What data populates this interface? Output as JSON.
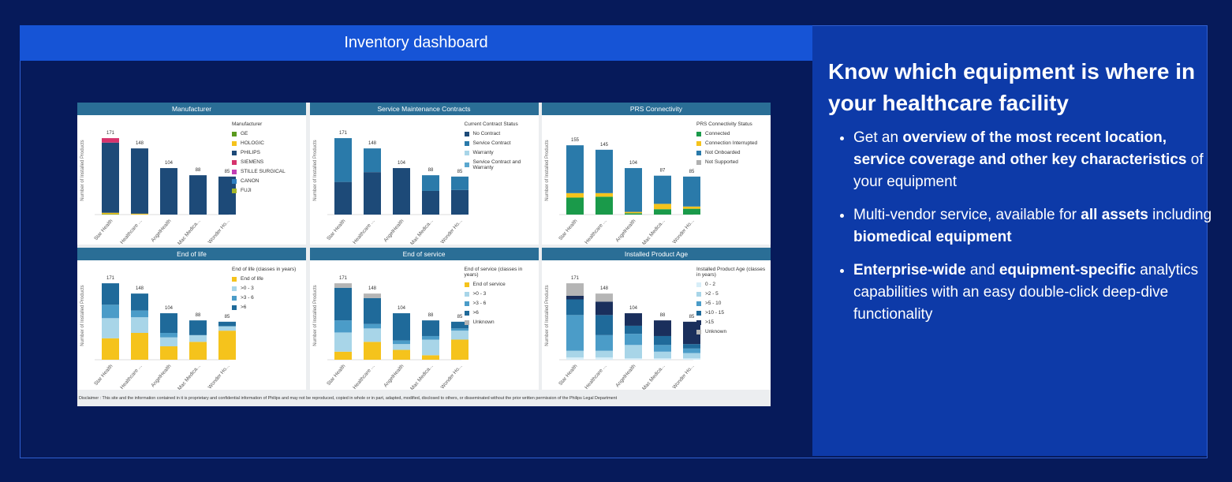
{
  "header": {
    "title": "Inventory dashboard"
  },
  "chart_data": [
    {
      "type": "bar",
      "stacked": true,
      "title": "Manufacturer",
      "y_label": "Number of Installed Products",
      "legend_title": "Manufacturer",
      "categories": [
        "Star Health",
        "Healthcare ...",
        "AngelHealth",
        "Mac Medica...",
        "Wonder Ho..."
      ],
      "ylim": [
        0,
        180
      ],
      "totals": [
        171,
        148,
        104,
        88,
        85
      ],
      "series": [
        {
          "name": "GE",
          "color": "#5a9a1e",
          "values": [
            1,
            0,
            0,
            0,
            0
          ]
        },
        {
          "name": "HOLOGIC",
          "color": "#f5c31c",
          "values": [
            3,
            2,
            0,
            0,
            0
          ]
        },
        {
          "name": "PHILIPS",
          "color": "#1d4a78",
          "values": [
            157,
            146,
            104,
            88,
            85
          ]
        },
        {
          "name": "SIEMENS",
          "color": "#d6336c",
          "values": [
            10,
            0,
            0,
            0,
            0
          ]
        },
        {
          "name": "STILLE SURGICAL",
          "color": "#c23fb5",
          "values": [
            0,
            0,
            0,
            0,
            0
          ]
        },
        {
          "name": "CANON",
          "color": "#2f7fc0",
          "values": [
            0,
            0,
            0,
            0,
            0
          ]
        },
        {
          "name": "FUJI",
          "color": "#a3b52a",
          "values": [
            0,
            0,
            0,
            0,
            0
          ]
        }
      ]
    },
    {
      "type": "bar",
      "stacked": true,
      "title": "Service Maintenance Contracts",
      "y_label": "Number of Installed Products",
      "legend_title": "Current Contract Status",
      "categories": [
        "Star Health",
        "Healthcare ...",
        "AngelHealth",
        "Mac Medica...",
        "Wonder Ho..."
      ],
      "ylim": [
        0,
        180
      ],
      "totals": [
        171,
        148,
        104,
        88,
        85
      ],
      "series": [
        {
          "name": "No Contract",
          "color": "#1d4a78",
          "values": [
            73,
            95,
            104,
            53,
            55
          ]
        },
        {
          "name": "Service Contract",
          "color": "#2a7aaa",
          "values": [
            98,
            53,
            0,
            35,
            30
          ]
        },
        {
          "name": "Warranty",
          "color": "#a8d5e8",
          "values": [
            0,
            0,
            0,
            0,
            0
          ]
        },
        {
          "name": "Service Contract and Warranty",
          "color": "#5aa7cf",
          "values": [
            0,
            0,
            0,
            0,
            0
          ]
        }
      ]
    },
    {
      "type": "bar",
      "stacked": true,
      "title": "PRS Connectivity",
      "y_label": "Number of Installed Products",
      "legend_title": "PRS Connectivity Status",
      "categories": [
        "Star Health",
        "Healthcare ...",
        "AngelHealth",
        "Mac Medica...",
        "Wonder Ho..."
      ],
      "ylim": [
        0,
        180
      ],
      "totals": [
        155,
        145,
        104,
        87,
        85
      ],
      "series": [
        {
          "name": "Connected",
          "color": "#1a9a4a",
          "values": [
            38,
            40,
            3,
            12,
            13
          ]
        },
        {
          "name": "Connection Interrupted",
          "color": "#f5c31c",
          "values": [
            10,
            8,
            3,
            12,
            5
          ]
        },
        {
          "name": "Not Onboarded",
          "color": "#2a7aaa",
          "values": [
            107,
            97,
            98,
            63,
            67
          ]
        },
        {
          "name": "Not Supported",
          "color": "#b0b0b0",
          "values": [
            0,
            0,
            0,
            0,
            0
          ]
        }
      ]
    },
    {
      "type": "bar",
      "stacked": true,
      "title": "End of life",
      "y_label": "Number of Installed Products",
      "legend_title": "End of life (classes in years)",
      "categories": [
        "Star Health",
        "Healthcare ...",
        "AngelHealth",
        "Mac Medica...",
        "Wonder Ho..."
      ],
      "ylim": [
        0,
        180
      ],
      "totals": [
        171,
        148,
        104,
        88,
        85
      ],
      "series": [
        {
          "name": "End of life",
          "color": "#f5c31c",
          "values": [
            48,
            60,
            30,
            40,
            65
          ]
        },
        {
          "name": ">0 - 3",
          "color": "#a8d5e8",
          "values": [
            45,
            35,
            20,
            15,
            10
          ]
        },
        {
          "name": ">3 - 6",
          "color": "#4b9cc8",
          "values": [
            30,
            15,
            10,
            0,
            0
          ]
        },
        {
          "name": ">6",
          "color": "#1f6a9a",
          "values": [
            48,
            38,
            44,
            33,
            10
          ]
        }
      ]
    },
    {
      "type": "bar",
      "stacked": true,
      "title": "End of service",
      "y_label": "Number of Installed Products",
      "legend_title": "End of service (classes in years)",
      "categories": [
        "Star Health",
        "Healthcare ...",
        "AngelHealth",
        "Mac Medica...",
        "Wonder Ho..."
      ],
      "ylim": [
        0,
        180
      ],
      "totals": [
        171,
        148,
        104,
        88,
        85
      ],
      "series": [
        {
          "name": "End of service",
          "color": "#f5c31c",
          "values": [
            18,
            40,
            22,
            10,
            45
          ]
        },
        {
          "name": ">0 - 3",
          "color": "#a8d5e8",
          "values": [
            43,
            30,
            13,
            35,
            20
          ]
        },
        {
          "name": ">3 - 6",
          "color": "#4b9cc8",
          "values": [
            27,
            10,
            8,
            8,
            5
          ]
        },
        {
          "name": ">6",
          "color": "#1f6a9a",
          "values": [
            73,
            58,
            61,
            35,
            15
          ]
        },
        {
          "name": "Unknown",
          "color": "#b5b5b5",
          "values": [
            10,
            10,
            0,
            0,
            0
          ]
        }
      ]
    },
    {
      "type": "bar",
      "stacked": true,
      "title": "Installed Product Age",
      "y_label": "Number of Installed Products",
      "legend_title": "Installed Product Age (classes in years)",
      "categories": [
        "Star Health",
        "Healthcare ...",
        "AngelHealth",
        "Mac Medica...",
        "Wonder Ho..."
      ],
      "ylim": [
        0,
        180
      ],
      "totals": [
        171,
        148,
        104,
        88,
        85
      ],
      "series": [
        {
          "name": "0 - 2",
          "color": "#d7eef8",
          "values": [
            5,
            5,
            3,
            3,
            3
          ]
        },
        {
          "name": ">2 - 5",
          "color": "#a8d5e8",
          "values": [
            15,
            15,
            30,
            15,
            12
          ]
        },
        {
          "name": ">5 - 10",
          "color": "#4b9cc8",
          "values": [
            80,
            35,
            25,
            15,
            10
          ]
        },
        {
          "name": ">10 - 15",
          "color": "#1f6a9a",
          "values": [
            35,
            45,
            18,
            20,
            10
          ]
        },
        {
          "name": ">15",
          "color": "#1a2f5c",
          "values": [
            8,
            30,
            28,
            35,
            50
          ]
        },
        {
          "name": "Unknown",
          "color": "#b5b5b5",
          "values": [
            28,
            18,
            0,
            0,
            0
          ]
        }
      ]
    }
  ],
  "disclaimer": "Disclaimer : This site and the information contained in it is proprietary and confidential information of Philips and may not be reproduced, copied in whole or in part, adapted, modified, disclosed to others, or disseminated without the prior written permission of the Philips Legal Department",
  "panel": {
    "heading": "Know which equipment is where in your healthcare facility",
    "bullets": [
      [
        {
          "text": "Get an ",
          "bold": false
        },
        {
          "text": "overview of the most recent location, service coverage and other key characteristics",
          "bold": true
        },
        {
          "text": " of your equipment",
          "bold": false
        }
      ],
      [
        {
          "text": "Multi-vendor service, available for ",
          "bold": false
        },
        {
          "text": "all assets",
          "bold": true
        },
        {
          "text": " including ",
          "bold": false
        },
        {
          "text": "biomedical equipment",
          "bold": true
        }
      ],
      [
        {
          "text": "Enterprise-wide",
          "bold": true
        },
        {
          "text": " and ",
          "bold": false
        },
        {
          "text": "equipment-specific",
          "bold": true
        },
        {
          "text": " analytics capabilities with an easy double-click deep-dive functionality",
          "bold": false
        }
      ]
    ]
  }
}
